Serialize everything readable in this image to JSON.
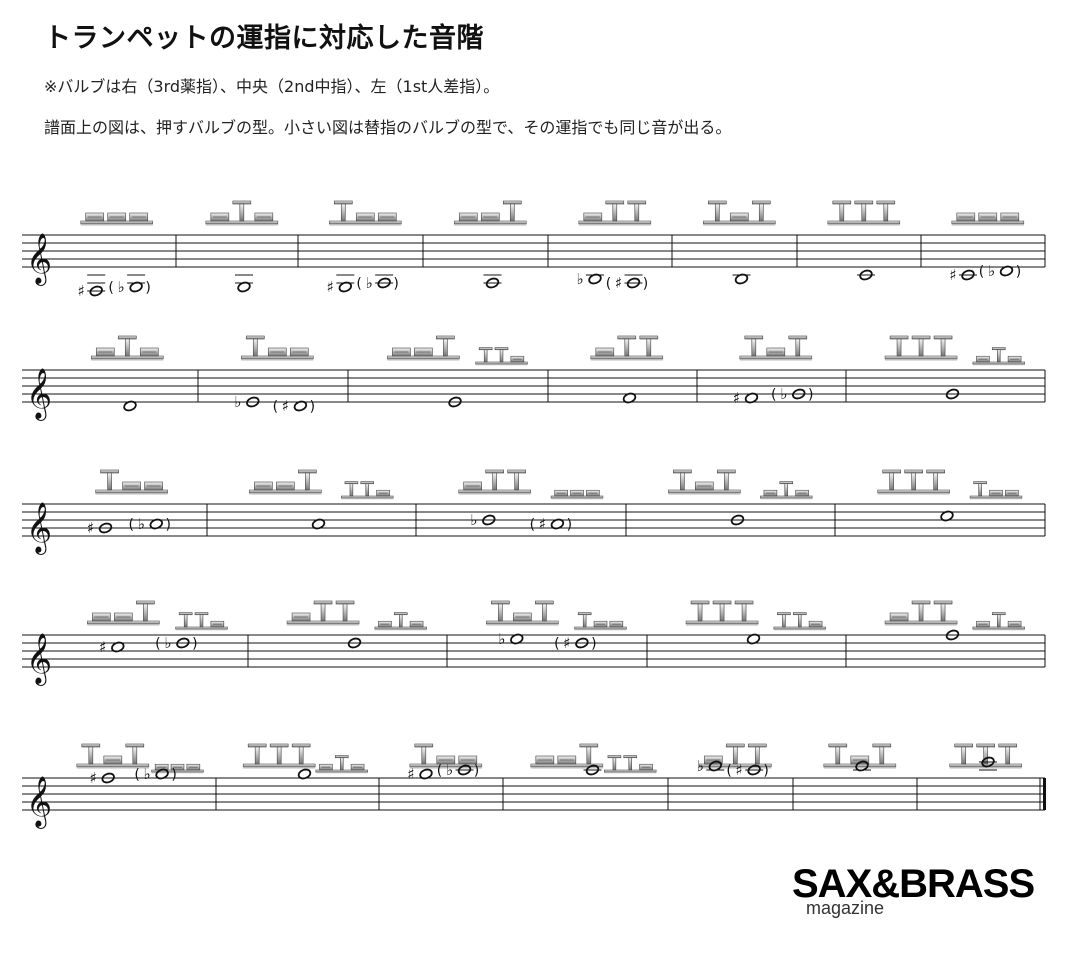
{
  "title": "トランペットの運指に対応した音階",
  "note1": "※バルブは右（3rd薬指）、中央（2nd中指）、左（1st人差指）。",
  "note2": "譜面上の図は、押すバルブの型。小さい図は替指のバルブの型で、その運指でも同じ音が出る。",
  "logo": {
    "main": "SAX&BRASS",
    "sub": "magazine"
  },
  "rows": [
    {
      "measures": [
        {
          "valves": "000",
          "notes": [
            {
              "acc": "#",
              "p": -6
            },
            {
              "acc": "b",
              "p": -5,
              "paren": true
            }
          ]
        },
        {
          "valves": "010",
          "notes": [
            {
              "p": -5
            }
          ]
        },
        {
          "valves": "100",
          "notes": [
            {
              "acc": "#",
              "p": -5
            },
            {
              "acc": "b",
              "p": -4,
              "paren": true
            }
          ]
        },
        {
          "valves": "001",
          "notes": [
            {
              "p": -4
            }
          ]
        },
        {
          "valves": "011",
          "notes": [
            {
              "acc": "b",
              "p": -3
            },
            {
              "acc": "#",
              "p": -4,
              "paren": true
            }
          ]
        },
        {
          "valves": "101",
          "notes": [
            {
              "p": -3
            }
          ]
        },
        {
          "valves": "111",
          "notes": [
            {
              "p": -2
            }
          ]
        },
        {
          "valves": "000",
          "notes": [
            {
              "acc": "#",
              "p": -2
            },
            {
              "acc": "b",
              "p": -1,
              "paren": true
            }
          ]
        }
      ]
    },
    {
      "measures": [
        {
          "valves": "010",
          "notes": [
            {
              "p": -1
            }
          ]
        },
        {
          "valves": "100",
          "notes": [
            {
              "acc": "b",
              "p": 0
            },
            {
              "acc": "#",
              "p": -1,
              "paren": true
            }
          ]
        },
        {
          "valves": "001",
          "alt": "110",
          "notes": [
            {
              "p": 0
            }
          ]
        },
        {
          "valves": "011",
          "notes": [
            {
              "p": 1
            }
          ]
        },
        {
          "valves": "101",
          "notes": [
            {
              "acc": "#",
              "p": 1
            },
            {
              "acc": "b",
              "p": 2,
              "paren": true
            }
          ]
        },
        {
          "valves": "111",
          "alt": "010",
          "notes": [
            {
              "p": 2
            }
          ]
        }
      ]
    },
    {
      "measures": [
        {
          "valves": "100",
          "notes": [
            {
              "acc": "#",
              "p": 2
            },
            {
              "acc": "b",
              "p": 3,
              "paren": true
            }
          ]
        },
        {
          "valves": "001",
          "alt": "110",
          "notes": [
            {
              "p": 3
            }
          ]
        },
        {
          "valves": "011",
          "alt": "000",
          "notes": [
            {
              "acc": "b",
              "p": 4
            },
            {
              "acc": "#",
              "p": 3,
              "paren": true
            }
          ]
        },
        {
          "valves": "101",
          "alt": "010",
          "notes": [
            {
              "p": 4
            }
          ]
        },
        {
          "valves": "111",
          "alt": "100",
          "notes": [
            {
              "p": 5
            }
          ]
        }
      ]
    },
    {
      "measures": [
        {
          "valves": "001",
          "alt": "110",
          "notes": [
            {
              "acc": "#",
              "p": 5
            },
            {
              "acc": "b",
              "p": 6,
              "paren": true
            }
          ]
        },
        {
          "valves": "011",
          "alt": "010",
          "notes": [
            {
              "p": 6
            }
          ]
        },
        {
          "valves": "101",
          "alt": "100",
          "notes": [
            {
              "acc": "b",
              "p": 7
            },
            {
              "acc": "#",
              "p": 6,
              "paren": true
            }
          ]
        },
        {
          "valves": "111",
          "alt": "110",
          "notes": [
            {
              "p": 7
            }
          ]
        },
        {
          "valves": "011",
          "alt": "010",
          "notes": [
            {
              "p": 8
            }
          ]
        }
      ]
    },
    {
      "measures": [
        {
          "valves": "101",
          "alt": "000",
          "notes": [
            {
              "acc": "#",
              "p": 8
            },
            {
              "acc": "b",
              "p": 9,
              "paren": true
            }
          ]
        },
        {
          "valves": "111",
          "alt": "010",
          "notes": [
            {
              "p": 9
            }
          ]
        },
        {
          "valves": "100",
          "notes": [
            {
              "acc": "#",
              "p": 9
            },
            {
              "acc": "b",
              "p": 10,
              "paren": true
            }
          ]
        },
        {
          "valves": "001",
          "alt": "110",
          "notes": [
            {
              "p": 10
            }
          ]
        },
        {
          "valves": "011",
          "notes": [
            {
              "acc": "b",
              "p": 11
            },
            {
              "acc": "#",
              "p": 10,
              "paren": true
            }
          ]
        },
        {
          "valves": "101",
          "notes": [
            {
              "p": 11
            }
          ]
        },
        {
          "valves": "111",
          "notes": [
            {
              "p": 12
            }
          ]
        }
      ]
    }
  ]
}
